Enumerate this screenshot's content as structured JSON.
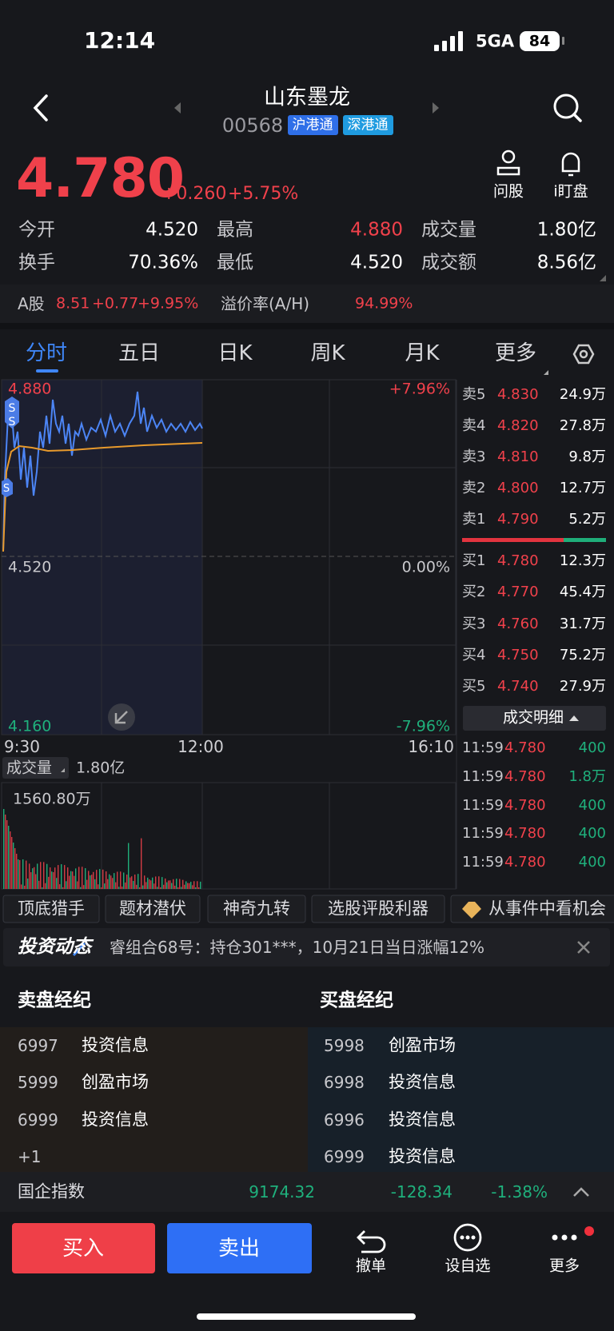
{
  "status": {
    "time": "12:14",
    "network": "5GA",
    "battery": "84"
  },
  "header": {
    "title": "山东墨龙",
    "code": "00568",
    "tags": [
      "沪港通",
      "深港通"
    ]
  },
  "quote": {
    "price": "4.780",
    "change": "+0.260",
    "change_pct": "+5.75%",
    "actions": [
      "问股",
      "i盯盘"
    ]
  },
  "stats": [
    [
      {
        "label": "今开",
        "value": "4.520",
        "color": "#ffffff"
      },
      {
        "label": "最高",
        "value": "4.880",
        "color": "#f0414b"
      },
      {
        "label": "成交量",
        "value": "1.80亿",
        "color": "#ffffff"
      }
    ],
    [
      {
        "label": "换手",
        "value": "70.36%",
        "color": "#ffffff"
      },
      {
        "label": "最低",
        "value": "4.520",
        "color": "#ffffff"
      },
      {
        "label": "成交额",
        "value": "8.56亿",
        "color": "#ffffff"
      }
    ]
  ],
  "a_share": {
    "label": "A股",
    "price": "8.51",
    "change": "+0.77",
    "change_pct": "+9.95%",
    "premium_label": "溢价率(A/H)",
    "premium": "94.99%"
  },
  "tabs": [
    "分时",
    "五日",
    "日K",
    "周K",
    "月K",
    "更多"
  ],
  "chart": {
    "price_labels": [
      "4.880",
      "4.520",
      "4.160"
    ],
    "pct_labels": [
      "+7.96%",
      "0.00%",
      "-7.96%"
    ],
    "time_labels": [
      "9:30",
      "12:00",
      "16:10"
    ],
    "volume_label": "成交量",
    "volume_total": "1.80亿",
    "volume_max": "1560.80万"
  },
  "order_book": {
    "sell": [
      {
        "label": "卖5",
        "price": "4.830",
        "volume": "24.9万"
      },
      {
        "label": "卖4",
        "price": "4.820",
        "volume": "27.8万"
      },
      {
        "label": "卖3",
        "price": "4.810",
        "volume": "9.8万"
      },
      {
        "label": "卖2",
        "price": "4.800",
        "volume": "12.7万"
      },
      {
        "label": "卖1",
        "price": "4.790",
        "volume": "5.2万"
      }
    ],
    "buy": [
      {
        "label": "买1",
        "price": "4.780",
        "volume": "12.3万"
      },
      {
        "label": "买2",
        "price": "4.770",
        "volume": "45.4万"
      },
      {
        "label": "买3",
        "price": "4.760",
        "volume": "31.7万"
      },
      {
        "label": "买4",
        "price": "4.750",
        "volume": "75.2万"
      },
      {
        "label": "买5",
        "price": "4.740",
        "volume": "27.9万"
      }
    ],
    "detail_button": "成交明细",
    "trades": [
      {
        "time": "11:59",
        "price": "4.780",
        "volume": "400"
      },
      {
        "time": "11:59",
        "price": "4.780",
        "volume": "1.8万"
      },
      {
        "time": "11:59",
        "price": "4.780",
        "volume": "400"
      },
      {
        "time": "11:59",
        "price": "4.780",
        "volume": "400"
      },
      {
        "time": "11:59",
        "price": "4.780",
        "volume": "400"
      }
    ]
  },
  "features": [
    "顶底猎手",
    "题材潜伏",
    "神奇九转",
    "选股评股利器",
    "从事件中看机会"
  ],
  "news": {
    "label": "投资动态",
    "text": "睿组合68号：持仓301***，10月21日当日涨幅12%"
  },
  "brokers": {
    "sell_title": "卖盘经纪",
    "buy_title": "买盘经纪",
    "sell": [
      {
        "code": "6997",
        "name": "投资信息"
      },
      {
        "code": "5999",
        "name": "创盈市场"
      },
      {
        "code": "6999",
        "name": "投资信息"
      }
    ],
    "sell_more": "+1",
    "buy": [
      {
        "code": "5998",
        "name": "创盈市场"
      },
      {
        "code": "6998",
        "name": "投资信息"
      },
      {
        "code": "6996",
        "name": "投资信息"
      },
      {
        "code": "6999",
        "name": "投资信息"
      }
    ]
  },
  "index": {
    "name": "国企指数",
    "value": "9174.32",
    "change": "-128.34",
    "change_pct": "-1.38%"
  },
  "bottom": {
    "buy": "买入",
    "sell": "卖出",
    "actions": [
      "撤单",
      "设自选",
      "更多"
    ]
  }
}
